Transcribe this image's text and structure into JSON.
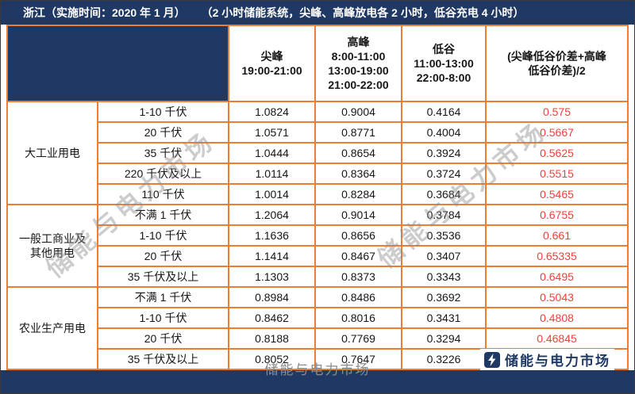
{
  "colors": {
    "navy": "#1f3864",
    "orange": "#ed7d31",
    "red": "#ff3b3b"
  },
  "title_bar": {
    "region": "浙江（实施时间：2020 年 1 月）",
    "note": "（2 小时储能系统，尖峰、高峰放电各 2 小时，低谷充电 4 小时）"
  },
  "chart_data": {
    "type": "table",
    "title": "浙江（实施时间：2020 年 1 月）（2 小时储能系统，尖峰、高峰放电各 2 小时，低谷充电 4 小时）",
    "columns": [
      {
        "label": "尖峰\n19:00-21:00"
      },
      {
        "label": "高峰\n8:00-11:00\n13:00-19:00\n21:00-22:00"
      },
      {
        "label": "低谷\n11:00-13:00\n22:00-8:00"
      },
      {
        "label": "(尖峰低谷价差+高峰\n低谷价差)/2"
      }
    ],
    "groups": [
      {
        "category": "大工业用电",
        "rows": [
          {
            "voltage": "1-10 千伏",
            "peak": "1.0824",
            "high": "0.9004",
            "valley": "0.4164",
            "spread": "0.575"
          },
          {
            "voltage": "20 千伏",
            "peak": "1.0571",
            "high": "0.8771",
            "valley": "0.4004",
            "spread": "0.5667"
          },
          {
            "voltage": "35 千伏",
            "peak": "1.0444",
            "high": "0.8654",
            "valley": "0.3924",
            "spread": "0.5625"
          },
          {
            "voltage": "220 千伏及以上",
            "peak": "1.0114",
            "high": "0.8364",
            "valley": "0.3724",
            "spread": "0.5515"
          },
          {
            "voltage": "110 千伏",
            "peak": "1.0014",
            "high": "0.8284",
            "valley": "0.3684",
            "spread": "0.5465"
          }
        ]
      },
      {
        "category": "一般工商业及\n其他用电",
        "rows": [
          {
            "voltage": "不满 1 千伏",
            "peak": "1.2064",
            "high": "0.9014",
            "valley": "0.3784",
            "spread": "0.6755"
          },
          {
            "voltage": "1-10 千伏",
            "peak": "1.1636",
            "high": "0.8656",
            "valley": "0.3536",
            "spread": "0.661"
          },
          {
            "voltage": "20 千伏",
            "peak": "1.1414",
            "high": "0.8467",
            "valley": "0.3407",
            "spread": "0.65335"
          },
          {
            "voltage": "35 千伏及以上",
            "peak": "1.1303",
            "high": "0.8373",
            "valley": "0.3343",
            "spread": "0.6495"
          }
        ]
      },
      {
        "category": "农业生产用电",
        "rows": [
          {
            "voltage": "不满 1 千伏",
            "peak": "0.8984",
            "high": "0.8486",
            "valley": "0.3692",
            "spread": "0.5043"
          },
          {
            "voltage": "1-10 千伏",
            "peak": "0.8462",
            "high": "0.8016",
            "valley": "0.3431",
            "spread": "0.4808"
          },
          {
            "voltage": "20 千伏",
            "peak": "0.8188",
            "high": "0.7769",
            "valley": "0.3294",
            "spread": "0.46845"
          },
          {
            "voltage": "35 千伏及以上",
            "peak": "0.8052",
            "high": "0.7647",
            "valley": "0.3226",
            "spread": "0.46235"
          }
        ]
      }
    ]
  },
  "watermarks": {
    "diagonal": "储能与电力市场",
    "bottom_center": "储能与电力市场"
  },
  "logo": {
    "text": "储能与电力市场"
  }
}
